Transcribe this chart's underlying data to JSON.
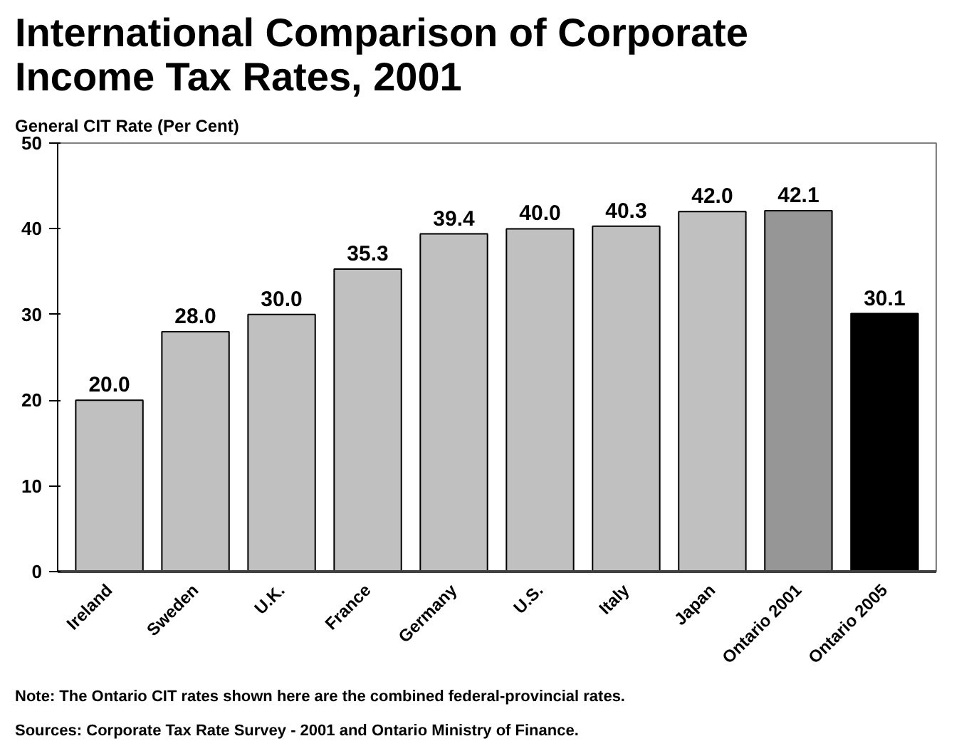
{
  "chart_data": {
    "type": "bar",
    "title": "International Comparison of Corporate\nIncome Tax Rates, 2001",
    "ylabel": "General CIT Rate (Per Cent)",
    "categories": [
      "Ireland",
      "Sweden",
      "U.K.",
      "France",
      "Germany",
      "U.S.",
      "Italy",
      "Japan",
      "Ontario 2001",
      "Ontario 2005"
    ],
    "values": [
      20.0,
      28.0,
      30.0,
      35.3,
      39.4,
      40.0,
      40.3,
      42.0,
      42.1,
      30.1
    ],
    "colors": [
      "#c0c0c0",
      "#c0c0c0",
      "#c0c0c0",
      "#c0c0c0",
      "#c0c0c0",
      "#c0c0c0",
      "#c0c0c0",
      "#c0c0c0",
      "#969696",
      "#000000"
    ],
    "value_labels": [
      "20.0",
      "28.0",
      "30.0",
      "35.3",
      "39.4",
      "40.0",
      "40.3",
      "42.0",
      "42.1",
      "30.1"
    ],
    "ylim": [
      0,
      50
    ],
    "yticks": [
      0,
      10,
      20,
      30,
      40,
      50
    ],
    "grid": false,
    "annotations": [
      "Note:  The Ontario CIT rates shown here are the combined federal-provincial rates.",
      "Sources:  Corporate Tax Rate Survey - 2001 and Ontario Ministry of Finance."
    ]
  }
}
